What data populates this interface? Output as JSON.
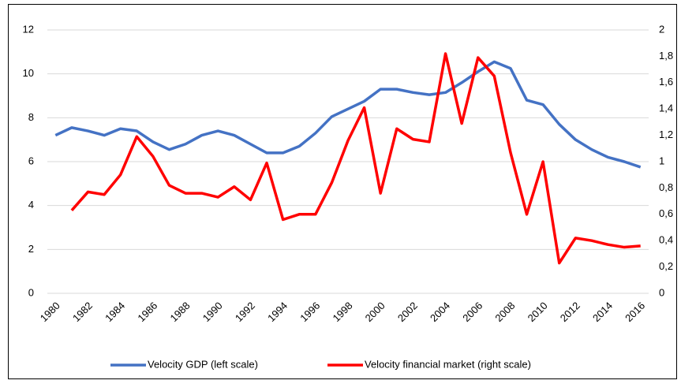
{
  "chart_data": {
    "type": "line",
    "x": [
      1980,
      1981,
      1982,
      1983,
      1984,
      1985,
      1986,
      1987,
      1988,
      1989,
      1990,
      1991,
      1992,
      1993,
      1994,
      1995,
      1996,
      1997,
      1998,
      1999,
      2000,
      2001,
      2002,
      2003,
      2004,
      2005,
      2006,
      2007,
      2008,
      2009,
      2010,
      2011,
      2012,
      2013,
      2014,
      2015,
      2016
    ],
    "xlim": [
      1979.5,
      2016.5
    ],
    "xticks": [
      1980,
      1982,
      1984,
      1986,
      1988,
      1990,
      1992,
      1994,
      1996,
      1998,
      2000,
      2002,
      2004,
      2006,
      2008,
      2010,
      2012,
      2014,
      2016
    ],
    "ylim": [
      0,
      12
    ],
    "yticks": [
      0,
      2,
      4,
      6,
      8,
      10,
      12
    ],
    "y2lim": [
      0,
      2
    ],
    "y2ticks": [
      0,
      {
        "value": 0.2,
        "label": "0,2"
      },
      {
        "value": 0.4,
        "label": "0,4"
      },
      {
        "value": 0.6,
        "label": "0,6"
      },
      {
        "value": 0.8,
        "label": "0,8"
      },
      1,
      {
        "value": 1.2,
        "label": "1,2"
      },
      {
        "value": 1.4,
        "label": "1,4"
      },
      {
        "value": 1.6,
        "label": "1,6"
      },
      {
        "value": 1.8,
        "label": "1,8"
      },
      2
    ],
    "grid": true,
    "legend": "bottom",
    "series": [
      {
        "name": "Velocity GDP (left scale)",
        "color": "#4472c4",
        "axis": "y",
        "values": [
          7.2,
          7.55,
          7.4,
          7.2,
          7.5,
          7.4,
          6.9,
          6.55,
          6.8,
          7.2,
          7.4,
          7.2,
          6.8,
          6.4,
          6.4,
          6.7,
          7.3,
          8.05,
          8.4,
          8.75,
          9.3,
          9.3,
          9.15,
          9.05,
          9.15,
          9.6,
          10.1,
          10.55,
          10.25,
          8.8,
          8.6,
          7.7,
          7.0,
          6.55,
          6.2,
          6.0,
          5.75
        ]
      },
      {
        "name": "Velocity financial market (right scale)",
        "color": "#ff0000",
        "axis": "y2",
        "values": [
          null,
          0.63,
          0.77,
          0.75,
          0.9,
          1.19,
          1.04,
          0.82,
          0.76,
          0.76,
          0.73,
          0.81,
          0.71,
          0.99,
          0.56,
          0.6,
          0.6,
          0.84,
          1.16,
          1.41,
          0.76,
          1.25,
          1.17,
          1.15,
          1.82,
          1.29,
          1.79,
          1.65,
          1.07,
          0.6,
          1.0,
          0.23,
          0.42,
          0.4,
          0.37,
          0.35,
          0.36
        ]
      }
    ]
  }
}
